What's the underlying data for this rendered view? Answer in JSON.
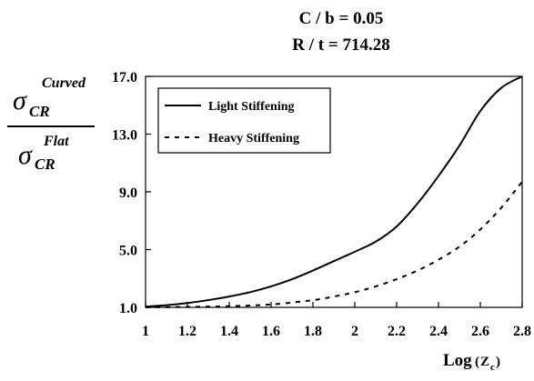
{
  "chart_data": {
    "type": "line",
    "title": [
      "C / b = 0.05",
      "R / t = 714.28"
    ],
    "ylabel": {
      "numerator": {
        "symbol": "σ",
        "sub": "CR",
        "sup": "Curved"
      },
      "denominator": {
        "symbol": "σ",
        "sub": "CR",
        "sup": "Flat"
      }
    },
    "xlabel": {
      "prefix": "Log",
      "open": "(",
      "var": "Z",
      "sub": "c",
      "close": ")"
    },
    "xlim": [
      1,
      2.8
    ],
    "ylim": [
      1,
      17
    ],
    "x_ticks": [
      "1",
      "1.2",
      "1.4",
      "1.6",
      "1.8",
      "2",
      "2.2",
      "2.4",
      "2.6",
      "2.8"
    ],
    "x_tick_values": [
      1,
      1.2,
      1.4,
      1.6,
      1.8,
      2,
      2.2,
      2.4,
      2.6,
      2.8
    ],
    "y_ticks": [
      "1.0",
      "5.0",
      "9.0",
      "13.0",
      "17.0"
    ],
    "y_tick_values": [
      1,
      5,
      9,
      13,
      17
    ],
    "grid": false,
    "legend_position": "top-left",
    "series": [
      {
        "name": "Light Stiffening",
        "style": "solid",
        "color": "#000000",
        "x": [
          1.0,
          1.1,
          1.2,
          1.3,
          1.4,
          1.5,
          1.6,
          1.7,
          1.8,
          1.9,
          2.0,
          2.1,
          2.2,
          2.3,
          2.4,
          2.5,
          2.6,
          2.7,
          2.8
        ],
        "y": [
          1.05,
          1.15,
          1.3,
          1.5,
          1.75,
          2.05,
          2.45,
          2.95,
          3.55,
          4.2,
          4.85,
          5.55,
          6.6,
          8.2,
          10.1,
          12.2,
          14.6,
          16.2,
          17.5
        ]
      },
      {
        "name": "Heavy Stiffening",
        "style": "dashed",
        "color": "#000000",
        "x": [
          1.0,
          1.2,
          1.4,
          1.6,
          1.8,
          1.9,
          2.0,
          2.1,
          2.2,
          2.3,
          2.4,
          2.5,
          2.6,
          2.7,
          2.8
        ],
        "y": [
          1.0,
          1.03,
          1.08,
          1.2,
          1.5,
          1.75,
          2.05,
          2.45,
          2.95,
          3.55,
          4.3,
          5.2,
          6.4,
          7.9,
          9.7
        ]
      }
    ]
  }
}
